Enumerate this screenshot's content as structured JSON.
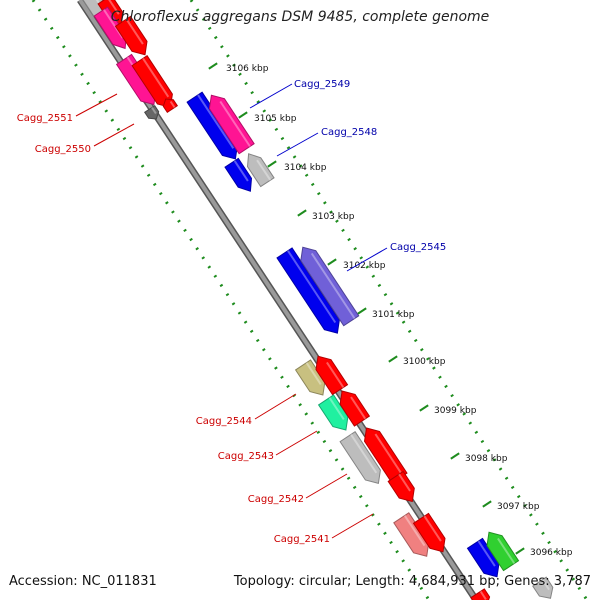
{
  "title": "Chloroflexus aggregans DSM 9485, complete genome",
  "footer": {
    "accession": "Accession: NC_011831",
    "topology": "Topology: circular; Length: 4,684,931 bp; Genes: 3,787"
  },
  "colors": {
    "backbone": "#8a8a8a",
    "scale_ticks": "#1e8c1e",
    "label_forward": "#cc0000",
    "label_reverse": "#0000aa",
    "gene_magenta": "#ff1493",
    "gene_red": "#ff0000",
    "gene_blue": "#0000ee",
    "gene_gray": "#bdbdbd",
    "gene_darkgray": "#666666",
    "gene_purple": "#7060d8",
    "gene_olive": "#c8c080",
    "gene_mint": "#20f0a0",
    "gene_salmon": "#f08080",
    "gene_green": "#30d030"
  },
  "scale": {
    "unit": "kbp",
    "tick_labels": [
      "3106 kbp",
      "3105 kbp",
      "3104 kbp",
      "3103 kbp",
      "3102 kbp",
      "3101 kbp",
      "3100 kbp",
      "3099 kbp",
      "3098 kbp",
      "3097 kbp",
      "3096 kbp"
    ]
  },
  "gene_labels": [
    {
      "id": "Cagg_2549",
      "strand": "reverse"
    },
    {
      "id": "Cagg_2548",
      "strand": "reverse"
    },
    {
      "id": "Cagg_2545",
      "strand": "reverse"
    },
    {
      "id": "Cagg_2551",
      "strand": "forward"
    },
    {
      "id": "Cagg_2550",
      "strand": "forward"
    },
    {
      "id": "Cagg_2544",
      "strand": "forward"
    },
    {
      "id": "Cagg_2543",
      "strand": "forward"
    },
    {
      "id": "Cagg_2542",
      "strand": "forward"
    },
    {
      "id": "Cagg_2541",
      "strand": "forward"
    }
  ]
}
